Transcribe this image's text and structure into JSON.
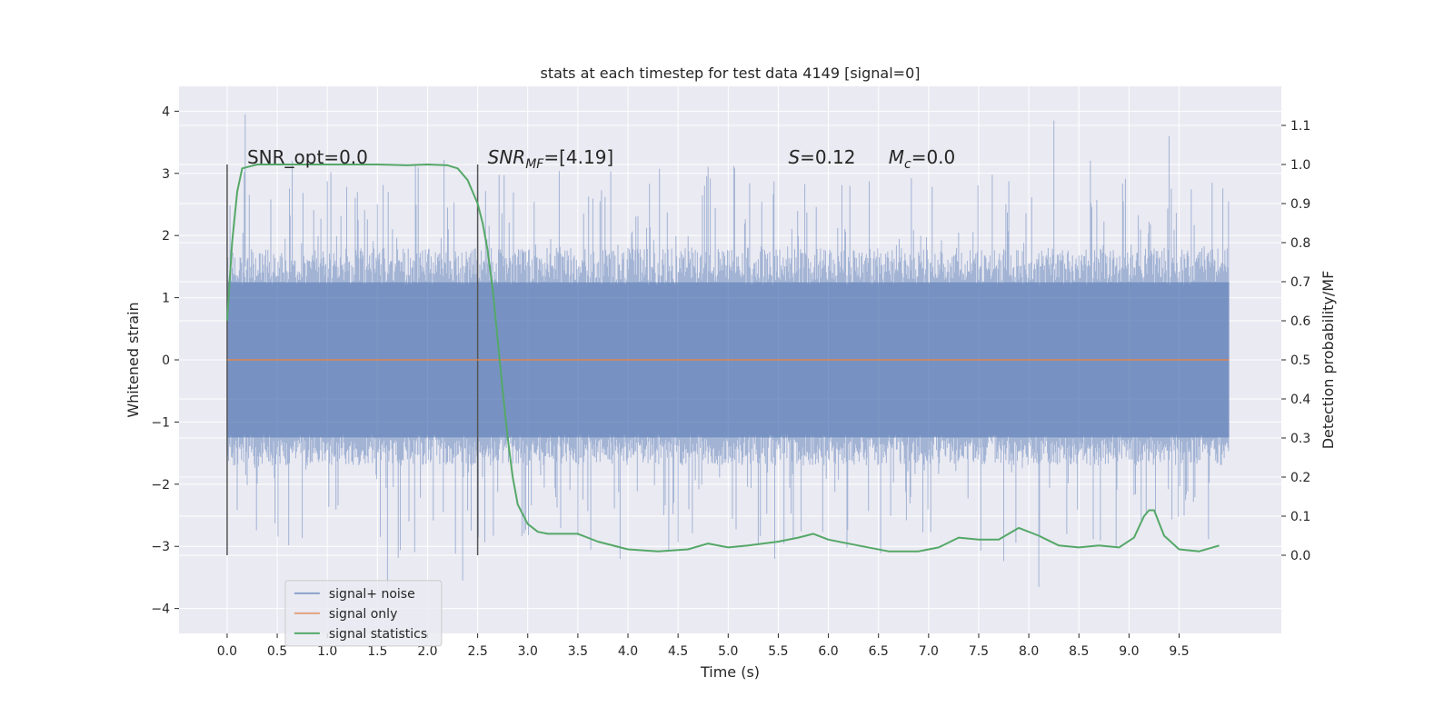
{
  "chart_data": {
    "type": "line",
    "title": "stats at each timestep for test data 4149 [signal=0]",
    "xlabel": "Time (s)",
    "ylabel_left": "Whitened strain",
    "ylabel_right": "Detection probability/MF",
    "xlim": [
      -0.48,
      10.52
    ],
    "ylim_left": [
      -4.4,
      4.4
    ],
    "ylim_right": [
      -0.2,
      1.2
    ],
    "xticks": [
      "0.0",
      "0.5",
      "1.0",
      "1.5",
      "2.0",
      "2.5",
      "3.0",
      "3.5",
      "4.0",
      "4.5",
      "5.0",
      "5.5",
      "6.0",
      "6.5",
      "7.0",
      "7.5",
      "8.0",
      "8.5",
      "9.0",
      "9.5"
    ],
    "yticks_left": [
      "−4",
      "−3",
      "−2",
      "−1",
      "0",
      "1",
      "2",
      "3",
      "4"
    ],
    "yticks_right": [
      "0.0",
      "0.1",
      "0.2",
      "0.3",
      "0.4",
      "0.5",
      "0.6",
      "0.7",
      "0.8",
      "0.9",
      "1.0",
      "1.1"
    ],
    "grid": true,
    "legend_position": "lower-left",
    "colors": {
      "noise": "#4c72b0",
      "signal_only": "#dd8452",
      "statistics": "#55a868",
      "marker": "#555555",
      "background": "#eaeaf2",
      "grid": "#ffffff"
    },
    "series": [
      {
        "name": "signal+ noise",
        "axis": "left",
        "description_of_values": "noisy whitened strain, roughly within -3.5..3.9, dense band about -1.3..1.8",
        "time_range": [
          0.0,
          10.0
        ],
        "band_low": -1.3,
        "band_high": 1.8,
        "peak_max": 3.95,
        "peak_min": -3.65
      },
      {
        "name": "signal only",
        "axis": "left",
        "x": [
          0.0,
          10.0
        ],
        "y": [
          0.0,
          0.0
        ]
      },
      {
        "name": "signal statistics",
        "axis": "right",
        "x": [
          0.0,
          0.05,
          0.1,
          0.15,
          0.3,
          0.5,
          1.0,
          1.5,
          1.8,
          2.0,
          2.2,
          2.3,
          2.4,
          2.5,
          2.55,
          2.6,
          2.65,
          2.7,
          2.75,
          2.8,
          2.85,
          2.9,
          3.0,
          3.1,
          3.2,
          3.3,
          3.5,
          3.7,
          4.0,
          4.3,
          4.6,
          4.8,
          5.0,
          5.2,
          5.5,
          5.7,
          5.85,
          6.0,
          6.3,
          6.6,
          6.9,
          7.1,
          7.3,
          7.5,
          7.7,
          7.9,
          8.1,
          8.3,
          8.5,
          8.7,
          8.9,
          9.05,
          9.15,
          9.2,
          9.25,
          9.35,
          9.5,
          9.7,
          9.9
        ],
        "y": [
          0.6,
          0.8,
          0.93,
          0.99,
          1.0,
          1.0,
          1.0,
          1.0,
          0.998,
          1.0,
          0.998,
          0.99,
          0.96,
          0.9,
          0.85,
          0.78,
          0.68,
          0.55,
          0.42,
          0.3,
          0.2,
          0.13,
          0.08,
          0.06,
          0.055,
          0.055,
          0.055,
          0.035,
          0.015,
          0.01,
          0.015,
          0.03,
          0.02,
          0.025,
          0.035,
          0.045,
          0.055,
          0.04,
          0.025,
          0.01,
          0.01,
          0.02,
          0.045,
          0.04,
          0.04,
          0.07,
          0.05,
          0.025,
          0.02,
          0.025,
          0.02,
          0.045,
          0.1,
          0.115,
          0.115,
          0.05,
          0.015,
          0.01,
          0.025
        ]
      }
    ],
    "markers_x": [
      0.0,
      2.5
    ],
    "annotations": {
      "snr_opt": "SNR_opt=0.0",
      "snr_mf_base": "SNR",
      "snr_mf_sub": "MF",
      "snr_mf_rest": "=[4.19]",
      "s_sym": "S",
      "s_rest": "=0.12",
      "mc_base": "M",
      "mc_sub": "c",
      "mc_rest": "=0.0"
    }
  }
}
